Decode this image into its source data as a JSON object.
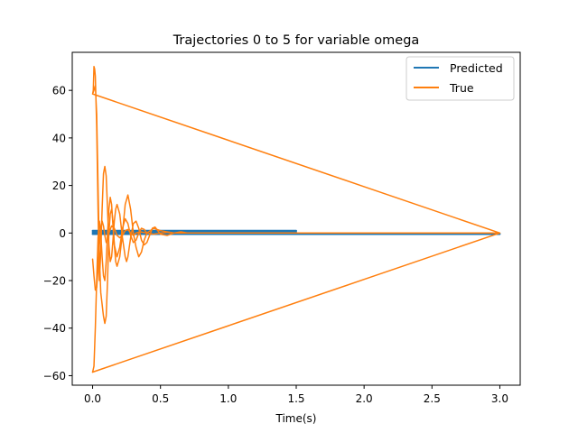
{
  "chart_data": {
    "type": "line",
    "title": "Trajectories 0 to 5 for variable omega",
    "xlabel": "Time(s)",
    "ylabel": "",
    "xlim": [
      -0.15,
      3.15
    ],
    "ylim": [
      -64,
      76
    ],
    "xticks": [
      0.0,
      0.5,
      1.0,
      1.5,
      2.0,
      2.5,
      3.0
    ],
    "xtick_labels": [
      "0.0",
      "0.5",
      "1.0",
      "1.5",
      "2.0",
      "2.5",
      "3.0"
    ],
    "yticks": [
      -60,
      -40,
      -20,
      0,
      20,
      40,
      60
    ],
    "ytick_labels": [
      "−60",
      "−40",
      "−20",
      "0",
      "20",
      "40",
      "60"
    ],
    "grid": false,
    "legend_position": "top-right",
    "series": [
      {
        "name": "Predicted",
        "color": "#1f77b4",
        "segments": [
          {
            "x": [
              0.0,
              1.5
            ],
            "y": [
              1.0,
              1.0
            ]
          },
          {
            "x": [
              0.0,
              1.5
            ],
            "y": [
              0.6,
              0.6
            ]
          },
          {
            "x": [
              0.0,
              1.5
            ],
            "y": [
              0.2,
              0.2
            ]
          },
          {
            "x": [
              0.0,
              3.0
            ],
            "y": [
              -0.2,
              -0.2
            ]
          },
          {
            "x": [
              0.0,
              3.0
            ],
            "y": [
              -0.5,
              -0.5
            ]
          }
        ]
      },
      {
        "name": "True",
        "color": "#ff7f0e",
        "x": [
          0.0,
          0.005,
          0.01,
          0.015,
          0.02,
          0.03,
          0.04,
          0.05,
          0.06,
          0.07,
          0.08,
          0.09,
          0.1,
          0.11,
          0.12,
          0.13,
          0.14,
          0.15,
          0.16,
          0.17,
          0.18,
          0.2,
          0.22,
          0.24,
          0.25,
          0.26,
          0.28,
          0.3,
          0.32,
          0.34,
          0.36,
          0.38,
          0.4,
          0.42,
          0.44,
          0.46,
          0.48,
          0.5,
          0.55,
          0.6,
          0.65,
          0.7,
          0.8,
          0.9,
          1.0,
          1.5,
          2.0,
          2.5,
          3.0,
          2.0,
          1.0,
          0.0,
          0.01,
          0.02,
          0.03,
          0.04,
          0.05,
          0.06,
          0.07,
          0.08,
          0.09,
          0.1,
          0.11,
          0.12,
          0.13,
          0.14,
          0.15,
          0.16,
          0.17,
          0.18,
          0.2,
          0.22,
          0.24,
          0.26,
          0.28,
          0.3,
          0.32,
          0.34,
          0.36,
          0.38,
          0.4,
          0.45,
          0.5,
          0.6,
          0.7,
          0.8,
          1.0,
          1.5,
          2.0,
          2.5,
          3.0,
          2.0,
          1.0,
          0.0
        ],
        "y": [
          58.5,
          60,
          70,
          69,
          66,
          45,
          10,
          -20,
          -8,
          10,
          25,
          28,
          24,
          10,
          -5,
          -12,
          -10,
          -3,
          5,
          10,
          12,
          8,
          -2,
          -10,
          -12,
          -10,
          -2,
          4,
          5,
          2,
          -3,
          -5,
          -4,
          -1,
          2,
          2.5,
          1,
          -0.5,
          -1,
          0,
          0.5,
          0,
          0,
          0,
          0,
          0,
          0,
          0,
          0,
          19.5,
          39,
          58.5,
          60,
          62,
          50,
          20,
          -10,
          -25,
          -30,
          -35,
          -38,
          -35,
          -20,
          0,
          8,
          10,
          5,
          -5,
          -12,
          -14,
          -10,
          0,
          12,
          16,
          10,
          0,
          -6,
          -10,
          -8,
          -3,
          0,
          2,
          1,
          0,
          0,
          0,
          0,
          0,
          0,
          0,
          0,
          -19.5,
          -39,
          -58.5
        ]
      },
      {
        "name": "",
        "color": "#ff7f0e",
        "x": [
          0.0,
          0.01,
          0.02,
          0.03,
          0.04,
          0.05,
          0.06,
          0.07,
          0.08,
          0.09,
          0.1,
          0.11,
          0.12,
          0.13,
          0.14,
          0.15,
          0.16,
          0.18,
          0.2,
          0.22,
          0.24,
          0.26,
          0.28,
          0.3,
          0.32,
          0.34,
          0.36,
          0.38,
          0.4,
          0.45,
          0.5,
          0.55,
          0.6,
          0.7
        ],
        "y": [
          -58.5,
          -56,
          -40,
          -20,
          -2,
          5,
          0,
          -10,
          -18,
          -20,
          -12,
          0,
          10,
          15,
          12,
          3,
          -5,
          -10,
          -6,
          2,
          6,
          4,
          -1,
          -4,
          -3,
          0,
          2,
          1.5,
          0,
          -0.5,
          0,
          0.3,
          0,
          0
        ]
      },
      {
        "name": "",
        "color": "#ff7f0e",
        "x": [
          0.0,
          0.01,
          0.02,
          0.03,
          0.04,
          0.05,
          0.06,
          0.07,
          0.08,
          0.09,
          0.1,
          0.11,
          0.12,
          0.14,
          0.16,
          0.18,
          0.2,
          0.22,
          0.24,
          0.26,
          0.28,
          0.3,
          0.32,
          0.35,
          0.4
        ],
        "y": [
          -11,
          -18,
          -24,
          -23,
          -15,
          -5,
          2,
          5,
          3,
          -1,
          -4,
          -3,
          0,
          3,
          2,
          -1,
          -2,
          -1,
          1,
          1.5,
          0,
          -1,
          0,
          0.5,
          0
        ]
      }
    ]
  }
}
